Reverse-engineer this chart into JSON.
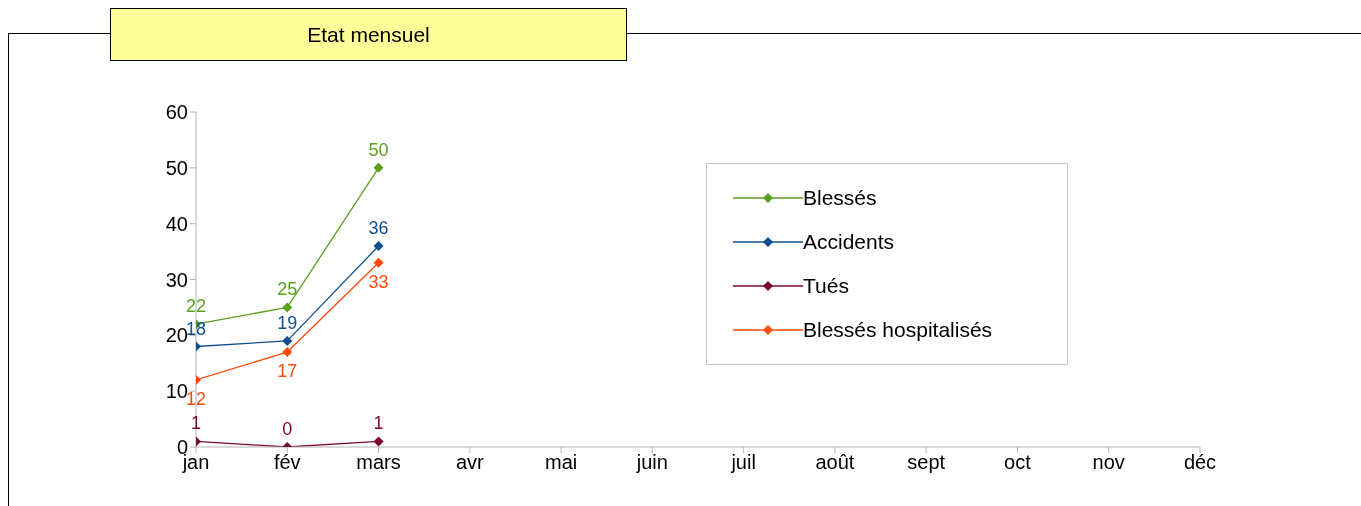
{
  "chart_data": {
    "type": "line",
    "title": "Etat mensuel",
    "categories": [
      "jan",
      "fév",
      "mars",
      "avr",
      "mai",
      "juin",
      "juil",
      "août",
      "sept",
      "oct",
      "nov",
      "déc"
    ],
    "series": [
      {
        "name": "Blessés",
        "color": "#59a01f",
        "values": [
          22,
          25,
          50,
          null,
          null,
          null,
          null,
          null,
          null,
          null,
          null,
          null
        ]
      },
      {
        "name": "Accidents",
        "color": "#0f4f8f",
        "values": [
          18,
          19,
          36,
          null,
          null,
          null,
          null,
          null,
          null,
          null,
          null,
          null
        ]
      },
      {
        "name": "Tués",
        "color": "#7b0a2a",
        "values": [
          1,
          0,
          1,
          null,
          null,
          null,
          null,
          null,
          null,
          null,
          null,
          null
        ]
      },
      {
        "name": "Blessés hospitalisés",
        "color": "#ff4a0a",
        "values": [
          12,
          17,
          33,
          null,
          null,
          null,
          null,
          null,
          null,
          null,
          null,
          null
        ]
      }
    ],
    "ylim": [
      0,
      60
    ],
    "yticks": [
      0,
      10,
      20,
      30,
      40,
      50,
      60
    ],
    "grid": false,
    "legend": "right",
    "marker": "diamond",
    "line_style": "solid",
    "data_labels": true
  }
}
